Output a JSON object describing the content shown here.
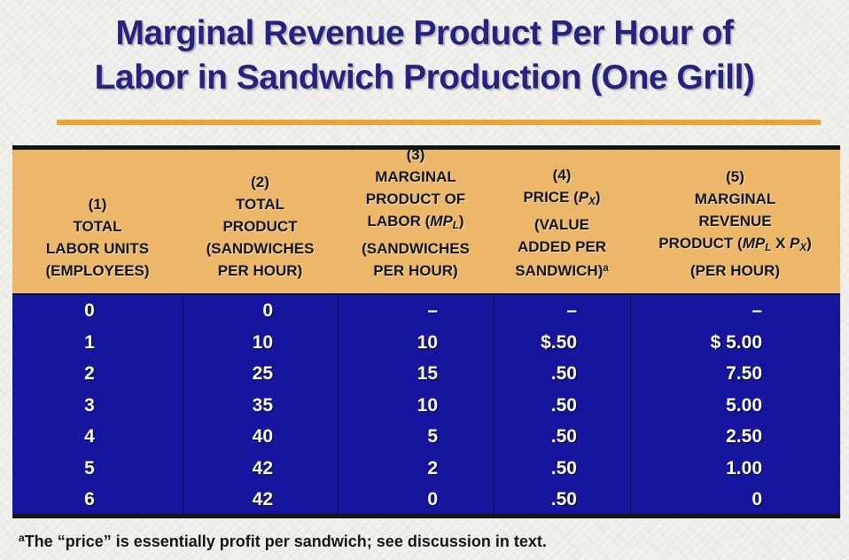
{
  "title": {
    "line1": "Marginal Revenue Product Per Hour of",
    "line2": "Labor in Sandwich Production (One Grill)"
  },
  "colors": {
    "background": "#EDEDEA",
    "title_text": "#24247E",
    "underline": "#F2A12E",
    "header_bg": "#ECB769",
    "header_text": "#141414",
    "body_bg": "#15159E",
    "body_text": "#FFFFFF",
    "border": "#141414",
    "divider": "#0C0C46",
    "footnote_text": "#141414"
  },
  "table": {
    "columns": [
      {
        "label": "total-labor-units",
        "lines": [
          "(1)",
          "TOTAL",
          "LABOR UNITS",
          "(EMPLOYEES)"
        ]
      },
      {
        "label": "total-product",
        "lines": [
          "(2)",
          "TOTAL",
          "PRODUCT",
          "(SANDWICHES",
          "PER HOUR)"
        ]
      },
      {
        "label": "marginal-product-of-labor",
        "lines": [
          "(3)",
          "MARGINAL",
          "PRODUCT OF",
          "LABOR ([i]MP[sub]L[/sub][/i])",
          "(SANDWICHES",
          "PER HOUR)"
        ]
      },
      {
        "label": "price-value-added",
        "lines": [
          "(4)",
          "PRICE ([i]P[sub]X[/sub][/i])",
          "(VALUE",
          "ADDED PER",
          "SANDWICH)[sup]a[/sup]"
        ]
      },
      {
        "label": "marginal-revenue-product",
        "lines": [
          "(5)",
          "MARGINAL",
          "REVENUE",
          "PRODUCT ([i]MP[sub]L[/sub][/i] X [i]P[sub]X[/sub][/i])",
          "(PER HOUR)"
        ]
      }
    ],
    "rows": [
      [
        "0",
        "0",
        "–",
        "–",
        "–"
      ],
      [
        "1",
        "10",
        "10",
        "$.50",
        "$ 5.00"
      ],
      [
        "2",
        "25",
        "15",
        ".50",
        "7.50"
      ],
      [
        "3",
        "35",
        "10",
        ".50",
        "5.00"
      ],
      [
        "4",
        "40",
        "5",
        ".50",
        "2.50"
      ],
      [
        "5",
        "42",
        "2",
        ".50",
        "1.00"
      ],
      [
        "6",
        "42",
        "0",
        ".50",
        "0"
      ]
    ]
  },
  "footnote": {
    "marker": "a",
    "text": "The “price” is essentially profit per sandwich; see discussion in text."
  }
}
